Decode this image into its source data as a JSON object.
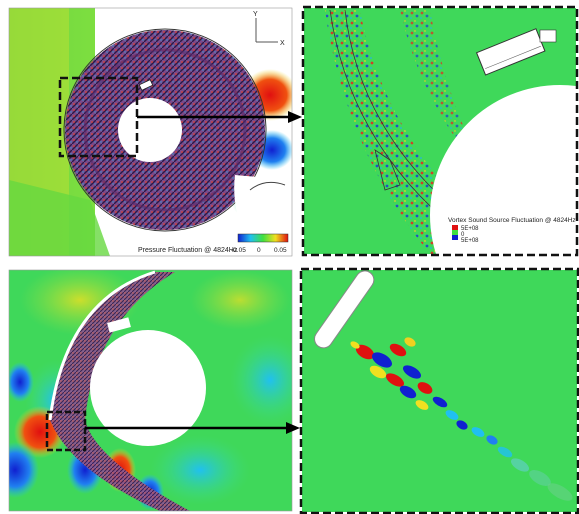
{
  "panels": {
    "top_left": {
      "colorbar_label": "Pressure Fluctuation @ 4824Hz",
      "colorbar_ticks": [
        "-0.05",
        "0",
        "0.05"
      ],
      "axis_y": "Y",
      "axis_x": "X"
    },
    "top_right": {
      "legend_title": "Vortex Sound Source Fluctuation @ 4824Hz",
      "legend_entries": [
        "5E+08",
        "0",
        "5E+08"
      ]
    },
    "bottom_left": {},
    "bottom_right": {}
  },
  "colors": {
    "field_green": "#2fd65a",
    "positive": "#e01010",
    "negative": "#1030d0",
    "zoom_border": "#111111",
    "arrow": "#000000"
  }
}
